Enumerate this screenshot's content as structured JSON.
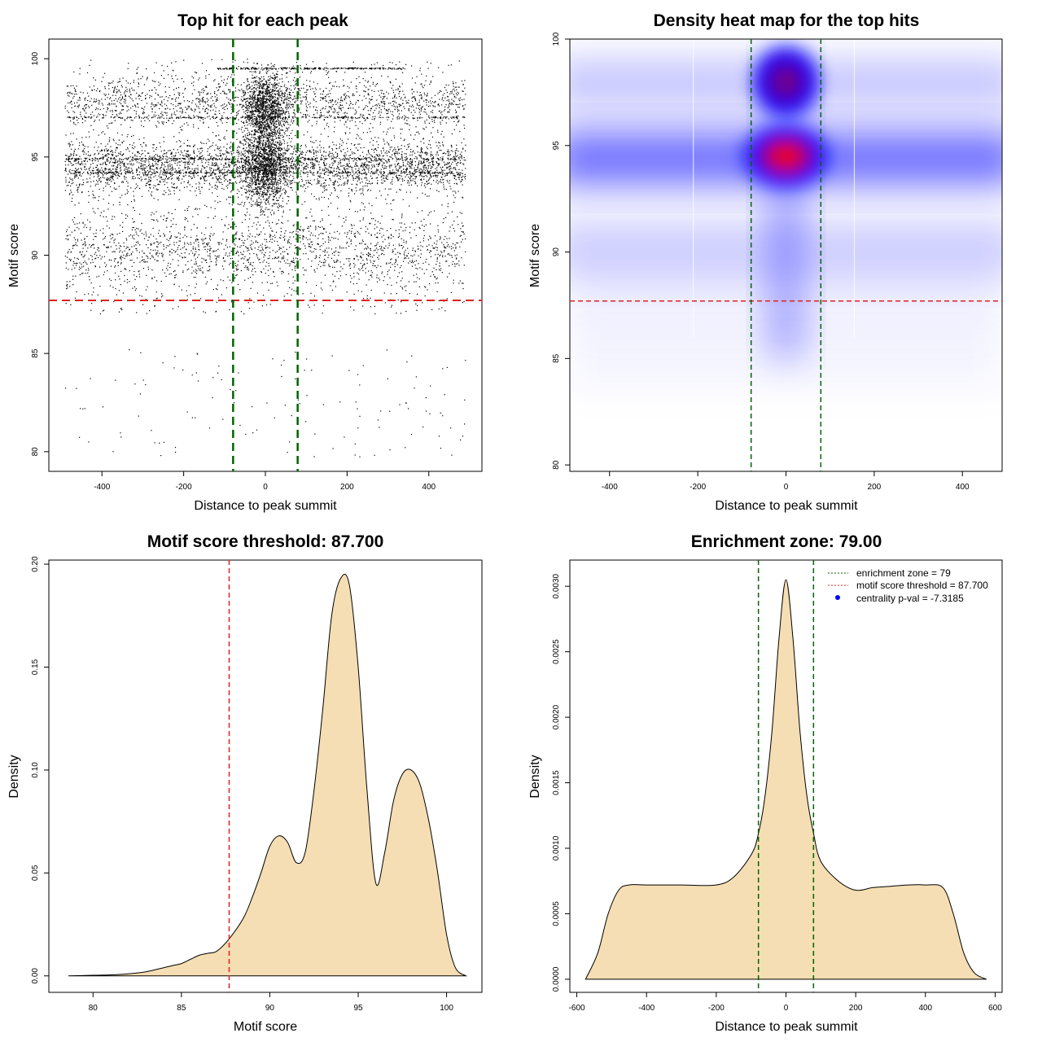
{
  "colors": {
    "threshold": "#dd2222",
    "zone": "#006400",
    "fill": "#f5deb3",
    "dot": "#000000",
    "heat_low": "#ffffff",
    "heat_mid": "#0000ff",
    "heat_high": "#ff0000",
    "legend_dot": "#0000ff"
  },
  "chart_data": [
    {
      "type": "scatter",
      "title": "Top hit for each peak",
      "xlabel": "Distance to peak summit",
      "ylabel": "Motif score",
      "xlim": [
        -530,
        530
      ],
      "ylim": [
        79,
        101
      ],
      "xticks": [
        "-400",
        "-200",
        "0",
        "200",
        "400"
      ],
      "xtick_values": [
        -400,
        -200,
        0,
        200,
        400
      ],
      "yticks": [
        "80",
        "85",
        "90",
        "95",
        "100"
      ],
      "ytick_values": [
        80,
        85,
        90,
        95,
        100
      ],
      "threshold": 87.7,
      "zone": [
        -79,
        79
      ],
      "x_range": [
        -490,
        490
      ],
      "y_range": [
        79.7,
        100
      ],
      "dense_rows": [
        94.2,
        94.9,
        97.0,
        99.5
      ]
    },
    {
      "type": "heatmap",
      "title": "Density heat map for the top hits",
      "xlabel": "Distance to peak summit",
      "ylabel": "Motif score",
      "xlim": [
        -490,
        490
      ],
      "ylim": [
        79.7,
        100
      ],
      "xticks": [
        "-400",
        "-200",
        "0",
        "200",
        "400"
      ],
      "xtick_values": [
        -400,
        -200,
        0,
        200,
        400
      ],
      "yticks": [
        "80",
        "85",
        "90",
        "95",
        "100"
      ],
      "yticks_values": [
        80,
        85,
        90,
        95,
        100
      ],
      "threshold": 87.7,
      "zone": [
        -79,
        79
      ],
      "hotspots": [
        {
          "x": 0,
          "y": 94.5,
          "peak": "red"
        },
        {
          "x": 0,
          "y": 98.0,
          "peak": "purple"
        }
      ],
      "band_y": [
        94.4,
        97.9,
        90.2
      ]
    },
    {
      "type": "area",
      "title": "Motif score threshold: 87.700",
      "xlabel": "Motif score",
      "ylabel": "Density",
      "xlim": [
        77.5,
        102
      ],
      "ylim": [
        -0.008,
        0.202
      ],
      "xticks": [
        "80",
        "85",
        "90",
        "95",
        "100"
      ],
      "xtick_values": [
        80,
        85,
        90,
        95,
        100
      ],
      "yticks": [
        "0.00",
        "0.05",
        "0.10",
        "0.15",
        "0.20"
      ],
      "ytick_values": [
        0,
        0.05,
        0.1,
        0.15,
        0.2
      ],
      "threshold": 87.7,
      "x": [
        78.6,
        80,
        81,
        82,
        83,
        84,
        84.5,
        85,
        85.5,
        86,
        86.5,
        87,
        87.7,
        88.5,
        89,
        89.5,
        90,
        90.5,
        91,
        91.5,
        92,
        92.5,
        93,
        93.5,
        94,
        94.5,
        95,
        95.5,
        96,
        96.5,
        97,
        97.5,
        98,
        98.5,
        99,
        99.5,
        100,
        100.5,
        101.1
      ],
      "values": [
        0,
        0.0003,
        0.0005,
        0.001,
        0.002,
        0.004,
        0.005,
        0.006,
        0.008,
        0.01,
        0.011,
        0.012,
        0.018,
        0.028,
        0.038,
        0.05,
        0.063,
        0.068,
        0.065,
        0.055,
        0.06,
        0.09,
        0.13,
        0.175,
        0.193,
        0.19,
        0.15,
        0.09,
        0.045,
        0.06,
        0.085,
        0.098,
        0.1,
        0.093,
        0.075,
        0.05,
        0.02,
        0.004,
        0
      ]
    },
    {
      "type": "area",
      "title": "Enrichment zone: 79.00",
      "xlabel": "Distance to peak summit",
      "ylabel": "Density",
      "xlim": [
        -620,
        620
      ],
      "ylim": [
        -0.0001,
        0.0032
      ],
      "xticks": [
        "-600",
        "-400",
        "-200",
        "0",
        "200",
        "400",
        "600"
      ],
      "xtick_values": [
        -600,
        -400,
        -200,
        0,
        200,
        400,
        600
      ],
      "yticks": [
        "0.0000",
        "0.0005",
        "0.0010",
        "0.0015",
        "0.0020",
        "0.0025",
        "0.0030"
      ],
      "ytick_values": [
        0,
        0.0005,
        0.001,
        0.0015,
        0.002,
        0.0025,
        0.003
      ],
      "zone": [
        -79,
        79
      ],
      "x": [
        -575,
        -540,
        -510,
        -480,
        -450,
        -400,
        -300,
        -200,
        -150,
        -100,
        -80,
        -60,
        -40,
        -20,
        0,
        20,
        40,
        60,
        80,
        100,
        150,
        200,
        250,
        300,
        350,
        400,
        450,
        480,
        510,
        540,
        575
      ],
      "values": [
        0,
        0.0002,
        0.0005,
        0.00068,
        0.00072,
        0.00072,
        0.00072,
        0.00072,
        0.00078,
        0.00095,
        0.0011,
        0.0014,
        0.0019,
        0.0026,
        0.00305,
        0.0026,
        0.0019,
        0.0014,
        0.0011,
        0.0009,
        0.00075,
        0.00068,
        0.0007,
        0.00071,
        0.00072,
        0.00072,
        0.0007,
        0.0005,
        0.0002,
        5e-05,
        0
      ],
      "legend": [
        {
          "label": "enrichment zone = 79",
          "style": "dotted",
          "color": "#006400"
        },
        {
          "label": "motif score threshold = 87.700",
          "style": "dotted",
          "color": "#dd2222"
        },
        {
          "label": "centrality p-val = -7.3185",
          "style": "point",
          "color": "#0000ff"
        }
      ],
      "legend_position": "top-right"
    }
  ]
}
